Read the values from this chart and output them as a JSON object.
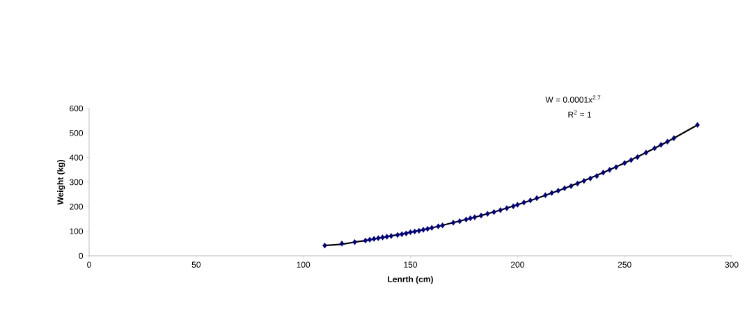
{
  "chart_data": {
    "type": "scatter",
    "xlabel": "Lenrth (cm)",
    "ylabel": "Weight (kg)",
    "annotations": [
      "W = 0.0001x$^{2.7}$",
      "R$^{2}$ = 1"
    ],
    "xlim": [
      0,
      300
    ],
    "xticks": [
      0,
      50,
      100,
      150,
      200,
      250,
      300
    ],
    "ylim": [
      0,
      600
    ],
    "yticks": [
      0,
      100,
      200,
      300,
      400,
      500,
      600
    ],
    "grid": false,
    "series": [
      {
        "marker": "diamond",
        "color": "#000080",
        "x": [
          110,
          118,
          124,
          129,
          131,
          133,
          135,
          137,
          139,
          141,
          144,
          146,
          148,
          150,
          152,
          154,
          156,
          158,
          160,
          163,
          165,
          170,
          173,
          176,
          178,
          180,
          183,
          186,
          189,
          192,
          195,
          198,
          200,
          203,
          206,
          209,
          213,
          216,
          219,
          222,
          225,
          228,
          231,
          234,
          237,
          240,
          243,
          246,
          250,
          253,
          256,
          260,
          264,
          267,
          270,
          273,
          284
        ],
        "values": [
          42,
          50,
          56,
          62,
          66,
          69,
          72,
          75,
          78,
          81,
          85,
          88,
          91,
          96,
          99,
          102,
          106,
          110,
          114,
          120,
          124,
          135,
          141,
          148,
          153,
          157,
          164,
          171,
          178,
          186,
          194,
          202,
          208,
          217,
          226,
          235,
          247,
          256,
          265,
          275,
          284,
          294,
          305,
          315,
          325,
          339,
          350,
          361,
          378,
          390,
          402,
          420,
          438,
          452,
          465,
          479,
          533
        ]
      },
      {
        "type": "line",
        "marker": "none",
        "line_style": "solid",
        "color": "#000000",
        "x": [
          110,
          118,
          124,
          129,
          135,
          141,
          150,
          160,
          170,
          180,
          190,
          200,
          210,
          220,
          230,
          240,
          250,
          260,
          270,
          273,
          284
        ],
        "values": [
          42,
          47,
          56,
          62,
          72,
          81,
          96,
          114,
          135,
          157,
          181,
          208,
          237,
          268,
          302,
          339,
          378,
          420,
          465,
          479,
          533
        ]
      }
    ]
  }
}
